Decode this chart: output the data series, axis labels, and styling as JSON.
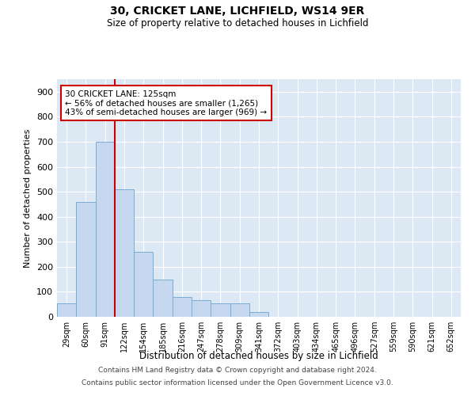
{
  "title1": "30, CRICKET LANE, LICHFIELD, WS14 9ER",
  "title2": "Size of property relative to detached houses in Lichfield",
  "xlabel": "Distribution of detached houses by size in Lichfield",
  "ylabel": "Number of detached properties",
  "categories": [
    "29sqm",
    "60sqm",
    "91sqm",
    "122sqm",
    "154sqm",
    "185sqm",
    "216sqm",
    "247sqm",
    "278sqm",
    "309sqm",
    "341sqm",
    "372sqm",
    "403sqm",
    "434sqm",
    "465sqm",
    "496sqm",
    "527sqm",
    "559sqm",
    "590sqm",
    "621sqm",
    "652sqm"
  ],
  "values": [
    55,
    460,
    700,
    510,
    260,
    150,
    80,
    65,
    55,
    55,
    20,
    0,
    0,
    0,
    0,
    0,
    0,
    0,
    0,
    0,
    0
  ],
  "bar_color": "#c5d8f0",
  "bar_edge_color": "#7aadd4",
  "vline_x": 2.5,
  "vline_color": "#cc0000",
  "annotation_text": "30 CRICKET LANE: 125sqm\n← 56% of detached houses are smaller (1,265)\n43% of semi-detached houses are larger (969) →",
  "annotation_box_color": "#ffffff",
  "annotation_box_edge": "#cc0000",
  "footer1": "Contains HM Land Registry data © Crown copyright and database right 2024.",
  "footer2": "Contains public sector information licensed under the Open Government Licence v3.0.",
  "ylim": [
    0,
    950
  ],
  "yticks": [
    0,
    100,
    200,
    300,
    400,
    500,
    600,
    700,
    800,
    900
  ],
  "bg_color": "#dde8f5",
  "fig_bg": "#ffffff"
}
